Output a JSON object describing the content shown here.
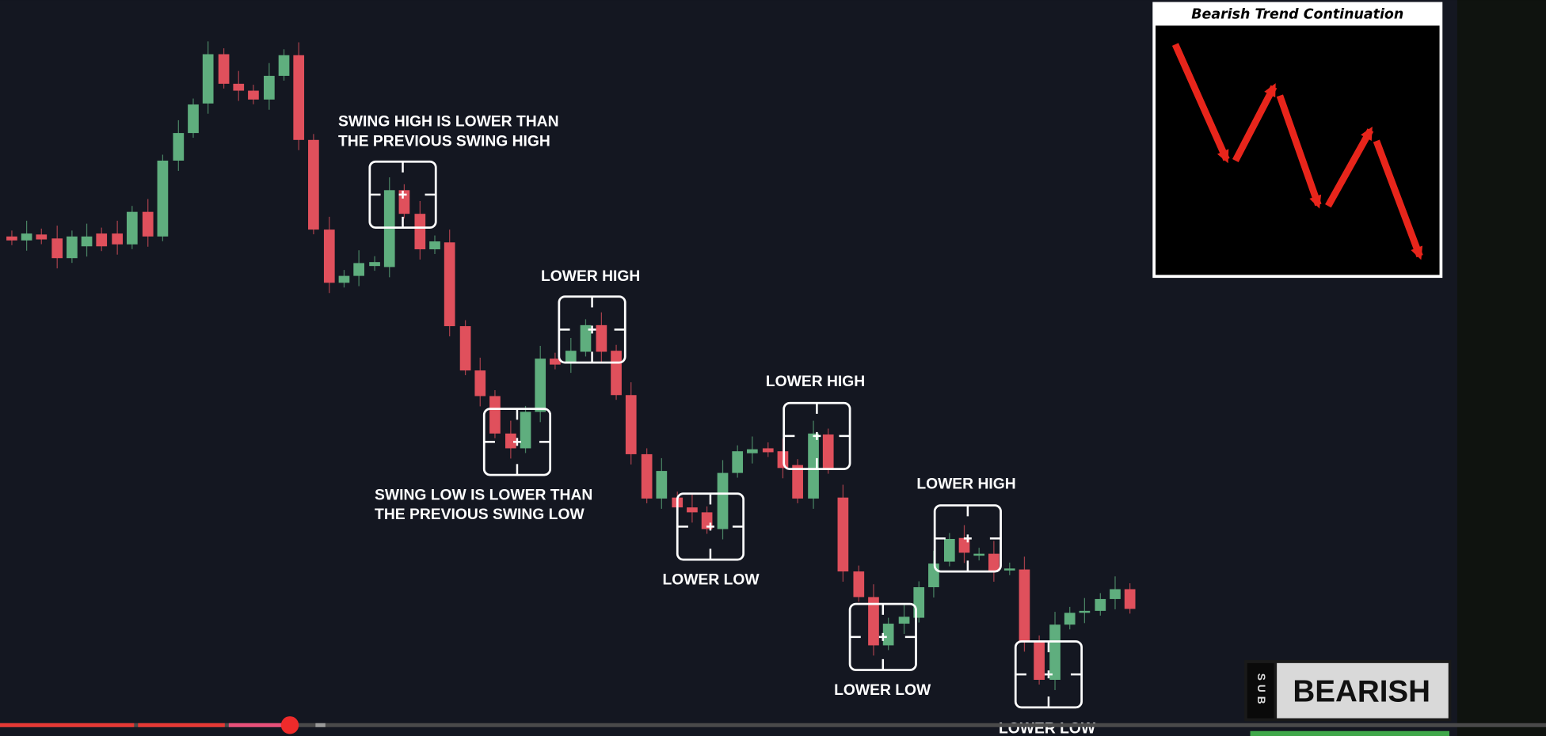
{
  "annotations": [
    {
      "lines": [
        "SWING HIGH IS LOWER THAN",
        "THE PREVIOUS SWING HIGH"
      ]
    },
    {
      "lines": [
        "LOWER HIGH"
      ]
    },
    {
      "lines": [
        "SWING LOW IS LOWER THAN",
        "THE PREVIOUS SWING LOW"
      ]
    },
    {
      "lines": [
        "LOWER LOW"
      ]
    },
    {
      "lines": [
        "LOWER HIGH"
      ]
    },
    {
      "lines": [
        "LOWER HIGH"
      ]
    },
    {
      "lines": [
        "LOWER LOW"
      ]
    },
    {
      "lines": [
        "LOWER LOW"
      ]
    }
  ],
  "inset": {
    "title": "Bearish Trend Continuation"
  },
  "badge": {
    "side": "SUB",
    "label": "BEARISH"
  }
}
